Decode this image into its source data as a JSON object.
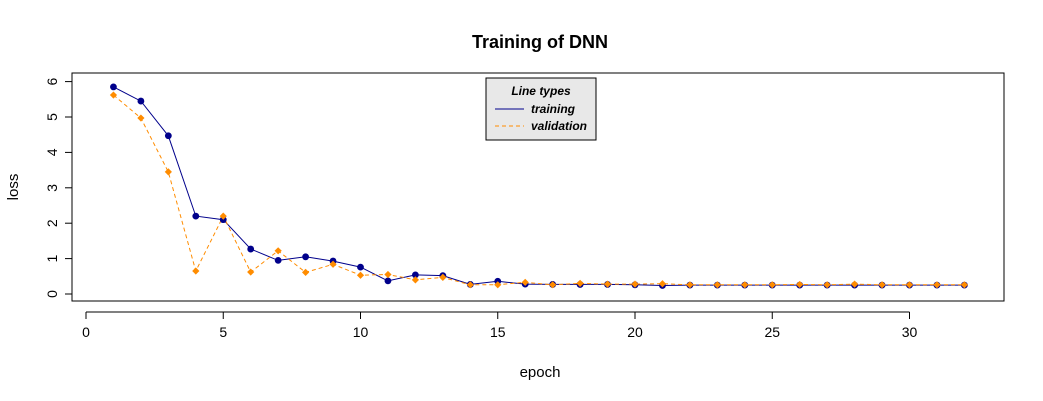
{
  "chart_data": {
    "type": "line",
    "title": "Training of DNN",
    "xlabel": "epoch",
    "ylabel": "loss",
    "xlim": [
      0,
      33
    ],
    "ylim": [
      0,
      6
    ],
    "x_ticks": [
      0,
      5,
      10,
      15,
      20,
      25,
      30
    ],
    "y_ticks": [
      0,
      1,
      2,
      3,
      4,
      5,
      6
    ],
    "x_tick_labels": [
      "0",
      "5",
      "10",
      "15",
      "20",
      "25",
      "30"
    ],
    "y_tick_labels": [
      "0",
      "1",
      "2",
      "3",
      "4",
      "5",
      "6"
    ],
    "grid": false,
    "legend": {
      "title": "Line types",
      "placement": "top-center",
      "background": "#e8e8e8"
    },
    "x": [
      1,
      2,
      3,
      4,
      5,
      6,
      7,
      8,
      9,
      10,
      11,
      12,
      13,
      14,
      15,
      16,
      17,
      18,
      19,
      20,
      21,
      22,
      23,
      24,
      25,
      26,
      27,
      28,
      29,
      30,
      31,
      32
    ],
    "series": [
      {
        "name": "training",
        "color": "#00008B",
        "line_style": "solid",
        "marker": "circle",
        "values": [
          5.85,
          5.45,
          4.47,
          2.2,
          2.1,
          1.27,
          0.95,
          1.05,
          0.93,
          0.76,
          0.37,
          0.54,
          0.52,
          0.27,
          0.36,
          0.28,
          0.27,
          0.27,
          0.27,
          0.26,
          0.24,
          0.25,
          0.25,
          0.25,
          0.25,
          0.25,
          0.25,
          0.25,
          0.25,
          0.25,
          0.25,
          0.25
        ]
      },
      {
        "name": "validation",
        "color": "#FF8C00",
        "line_style": "dashed",
        "marker": "diamond",
        "values": [
          5.62,
          4.97,
          3.45,
          0.65,
          2.2,
          0.62,
          1.22,
          0.61,
          0.84,
          0.53,
          0.55,
          0.4,
          0.47,
          0.26,
          0.26,
          0.33,
          0.26,
          0.3,
          0.28,
          0.28,
          0.29,
          0.26,
          0.26,
          0.26,
          0.26,
          0.27,
          0.26,
          0.28,
          0.26,
          0.26,
          0.26,
          0.26
        ]
      }
    ]
  }
}
